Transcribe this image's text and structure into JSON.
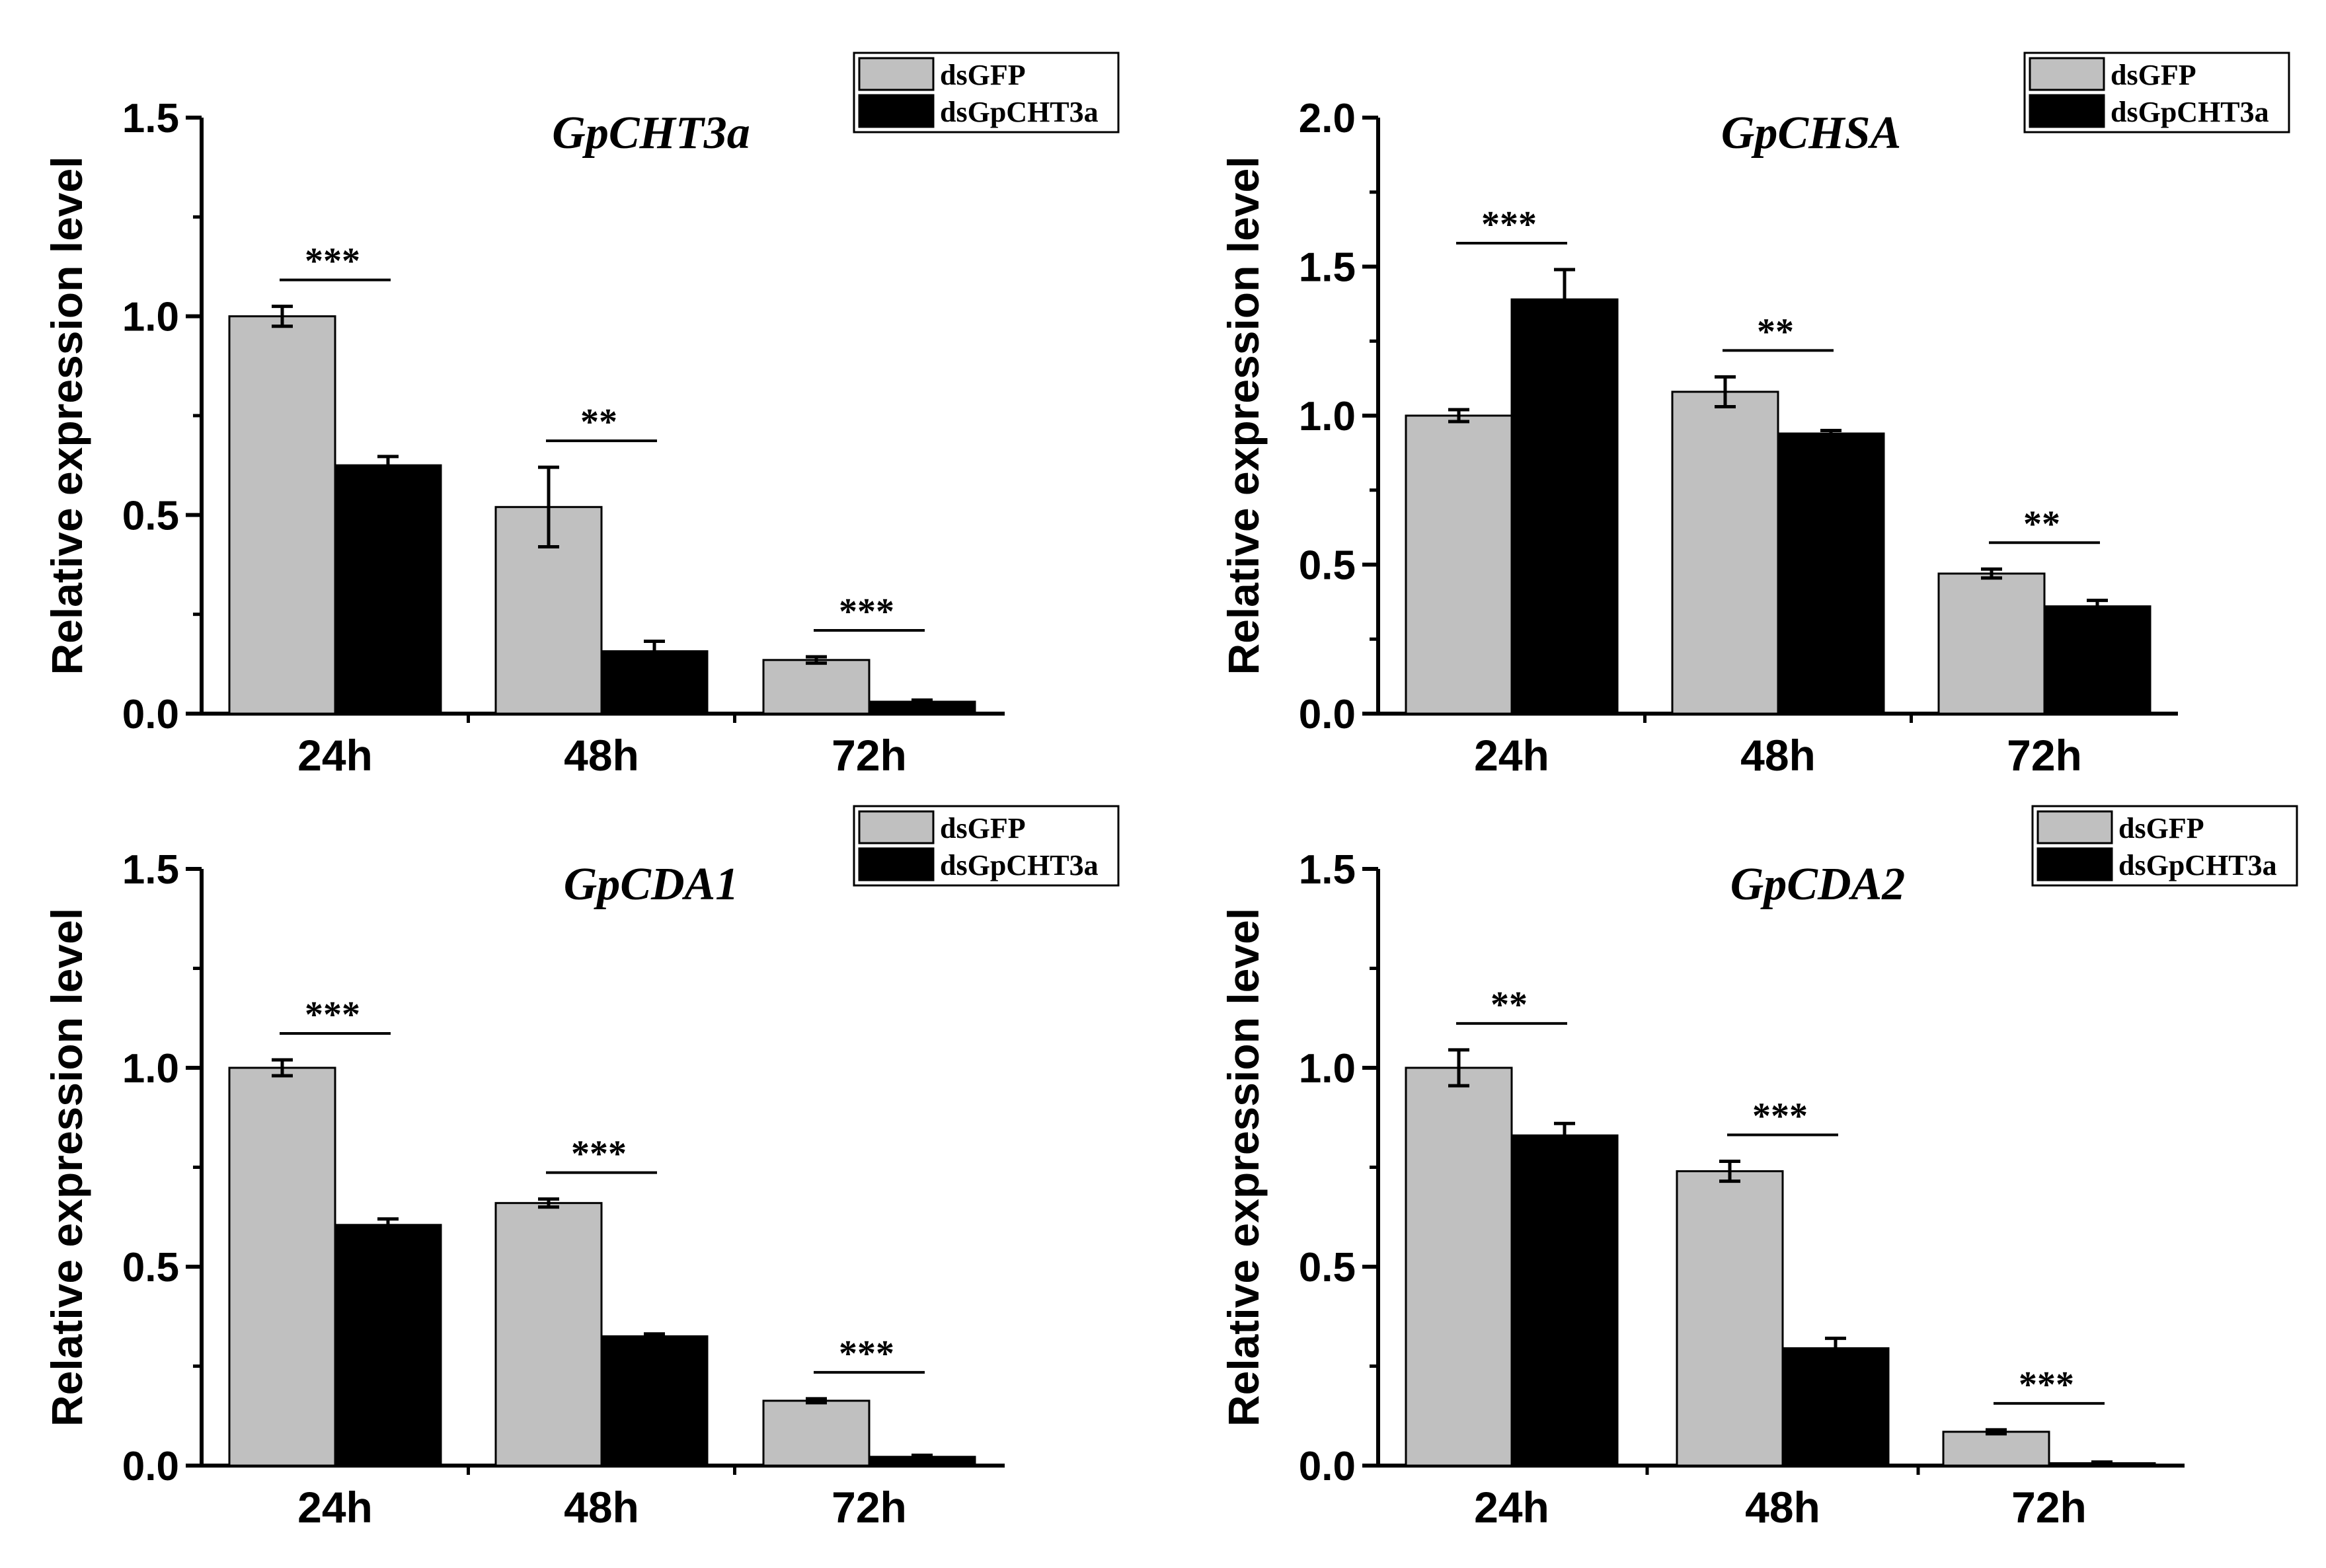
{
  "chart_data": [
    {
      "type": "bar",
      "title": "GpCHT3a",
      "xlabel": "",
      "ylabel": "Relative expression level",
      "ylim": [
        0,
        1.5
      ],
      "yticks": [
        "0.0",
        "0.5",
        "1.0",
        "1.5"
      ],
      "categories": [
        "24h",
        "48h",
        "72h"
      ],
      "legend_position": "top-right",
      "series": [
        {
          "name": "dsGFP",
          "color": "#c0c0c0",
          "values": [
            1.0,
            0.52,
            0.135
          ],
          "errors": [
            0.025,
            0.1,
            0.008
          ]
        },
        {
          "name": "dsGpCHT3a",
          "color": "#000000",
          "values": [
            0.625,
            0.157,
            0.03
          ],
          "errors": [
            0.022,
            0.025,
            0.004
          ]
        }
      ],
      "significance": [
        "***",
        "**",
        "***"
      ]
    },
    {
      "type": "bar",
      "title": "GpCHSA",
      "xlabel": "",
      "ylabel": "Relative expression level",
      "ylim": [
        0,
        2.0
      ],
      "yticks": [
        "0.0",
        "0.5",
        "1.0",
        "1.5",
        "2.0"
      ],
      "categories": [
        "24h",
        "48h",
        "72h"
      ],
      "legend_position": "top-right",
      "series": [
        {
          "name": "dsGFP",
          "color": "#c0c0c0",
          "values": [
            1.0,
            1.08,
            0.47
          ],
          "errors": [
            0.02,
            0.05,
            0.015
          ]
        },
        {
          "name": "dsGpCHT3a",
          "color": "#000000",
          "values": [
            1.39,
            0.94,
            0.36
          ],
          "errors": [
            0.1,
            0.01,
            0.02
          ]
        }
      ],
      "significance": [
        "***",
        "**",
        "**"
      ]
    },
    {
      "type": "bar",
      "title": "GpCDA1",
      "xlabel": "",
      "ylabel": "Relative expression level",
      "ylim": [
        0,
        1.5
      ],
      "yticks": [
        "0.0",
        "0.5",
        "1.0",
        "1.5"
      ],
      "categories": [
        "24h",
        "48h",
        "72h"
      ],
      "legend_position": "top-right",
      "series": [
        {
          "name": "dsGFP",
          "color": "#c0c0c0",
          "values": [
            1.0,
            0.66,
            0.163
          ],
          "errors": [
            0.02,
            0.01,
            0.005
          ]
        },
        {
          "name": "dsGpCHT3a",
          "color": "#000000",
          "values": [
            0.605,
            0.325,
            0.022
          ],
          "errors": [
            0.015,
            0.006,
            0.004
          ]
        }
      ],
      "significance": [
        "***",
        "***",
        "***"
      ]
    },
    {
      "type": "bar",
      "title": "GpCDA2",
      "xlabel": "",
      "ylabel": "Relative expression level",
      "ylim": [
        0,
        1.5
      ],
      "yticks": [
        "0.0",
        "0.5",
        "1.0",
        "1.5"
      ],
      "categories": [
        "24h",
        "48h",
        "72h"
      ],
      "legend_position": "top-right",
      "series": [
        {
          "name": "dsGFP",
          "color": "#c0c0c0",
          "values": [
            1.0,
            0.74,
            0.085
          ],
          "errors": [
            0.045,
            0.025,
            0.005
          ]
        },
        {
          "name": "dsGpCHT3a",
          "color": "#000000",
          "values": [
            0.83,
            0.295,
            0.006
          ],
          "errors": [
            0.03,
            0.025,
            0.003
          ]
        }
      ],
      "significance": [
        "**",
        "***",
        "***"
      ]
    }
  ]
}
